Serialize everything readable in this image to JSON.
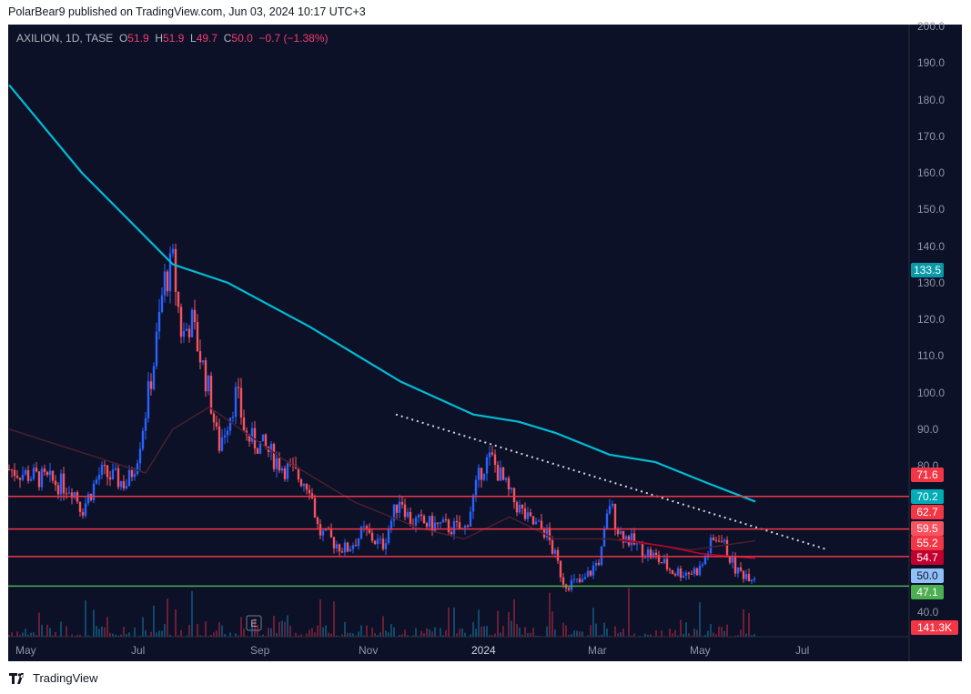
{
  "header": {
    "published": "PolarBear9 published on TradingView.com, Jun 03, 2024 10:17 UTC+3"
  },
  "legend": {
    "symbol": "AXILION, 1D, TASE",
    "o_label": "O",
    "o": "51.9",
    "h_label": "H",
    "h": "51.9",
    "l_label": "L",
    "l": "49.7",
    "c_label": "C",
    "c": "50.0",
    "change": "−0.7 (−1.38%)"
  },
  "brand": {
    "name": "TradingView"
  },
  "colors": {
    "up": "#2962ff",
    "down": "#f7525f",
    "ma200": "#00bcd4",
    "hline": "#f23645",
    "support": "#4caf50"
  },
  "chart_data": {
    "type": "candlestick",
    "symbol": "AXILION",
    "price_ticks": [
      "200.0",
      "190.0",
      "180.0",
      "170.0",
      "160.0",
      "150.0",
      "140.0",
      "130.0",
      "120.0",
      "110.0",
      "100.0",
      "90.0",
      "80.0",
      "40.0"
    ],
    "time_ticks": [
      "May",
      "Jul",
      "Sep",
      "Nov",
      "2024",
      "Mar",
      "May",
      "Jul"
    ],
    "ylim": [
      40,
      200
    ],
    "horizontal_levels": [
      71.6,
      62.7,
      55.2,
      47.1
    ],
    "price_labels": [
      {
        "text": "133.5",
        "color": "#089aa8"
      },
      {
        "text": "71.6",
        "color": "#f23645"
      },
      {
        "text": "70.2",
        "color": "#00acb6"
      },
      {
        "text": "62.7",
        "color": "#f23645"
      },
      {
        "text": "59.5",
        "color": "#f7525f"
      },
      {
        "text": "55.2",
        "color": "#f23645"
      },
      {
        "text": "54.7",
        "color": "#c2002f"
      },
      {
        "text": "50.0",
        "color": "#90bff9"
      },
      {
        "text": "47.1",
        "color": "#4caf50"
      },
      {
        "text": "141.3K",
        "color": "#f23645"
      }
    ],
    "close_path": [
      [
        0,
        79
      ],
      [
        7,
        74
      ],
      [
        8,
        68
      ],
      [
        10,
        78
      ],
      [
        13,
        75
      ],
      [
        14,
        82
      ],
      [
        15,
        95
      ],
      [
        16,
        110
      ],
      [
        17,
        130
      ],
      [
        18,
        135
      ],
      [
        19,
        115
      ],
      [
        20,
        120
      ],
      [
        22,
        100
      ],
      [
        23,
        85
      ],
      [
        25,
        100
      ],
      [
        26,
        88
      ],
      [
        28,
        85
      ],
      [
        30,
        80
      ],
      [
        33,
        75
      ],
      [
        34,
        62
      ],
      [
        37,
        57
      ],
      [
        39,
        62
      ],
      [
        41,
        58
      ],
      [
        43,
        72
      ],
      [
        44,
        65
      ],
      [
        46,
        64
      ],
      [
        49,
        63
      ],
      [
        50,
        62
      ],
      [
        52,
        80
      ],
      [
        53,
        82
      ],
      [
        55,
        72
      ],
      [
        57,
        65
      ],
      [
        59,
        62
      ],
      [
        60,
        55
      ],
      [
        61,
        48
      ],
      [
        63,
        48
      ],
      [
        65,
        55
      ],
      [
        66,
        70
      ],
      [
        67,
        62
      ],
      [
        69,
        58
      ],
      [
        71,
        55
      ],
      [
        73,
        51
      ],
      [
        75,
        51
      ],
      [
        76,
        52
      ],
      [
        77,
        58
      ],
      [
        78,
        61
      ],
      [
        79,
        56
      ],
      [
        80,
        51
      ],
      [
        82,
        50
      ]
    ],
    "ma200": [
      [
        0,
        184
      ],
      [
        8,
        160
      ],
      [
        18,
        135
      ],
      [
        24,
        130
      ],
      [
        33,
        118
      ],
      [
        43,
        103
      ],
      [
        51,
        94
      ],
      [
        56,
        92
      ],
      [
        60,
        89
      ],
      [
        66,
        83
      ],
      [
        71,
        81
      ],
      [
        77,
        75
      ],
      [
        82,
        70.2
      ]
    ],
    "ma50": [
      [
        0,
        90
      ],
      [
        10,
        82
      ],
      [
        15,
        78
      ],
      [
        18,
        90
      ],
      [
        22,
        96
      ],
      [
        30,
        82
      ],
      [
        38,
        70
      ],
      [
        45,
        63
      ],
      [
        50,
        60
      ],
      [
        55,
        66
      ],
      [
        60,
        60
      ],
      [
        66,
        60
      ],
      [
        75,
        57
      ],
      [
        82,
        59.5
      ]
    ],
    "trendline": [
      [
        42.5,
        94
      ],
      [
        90,
        57
      ]
    ]
  }
}
